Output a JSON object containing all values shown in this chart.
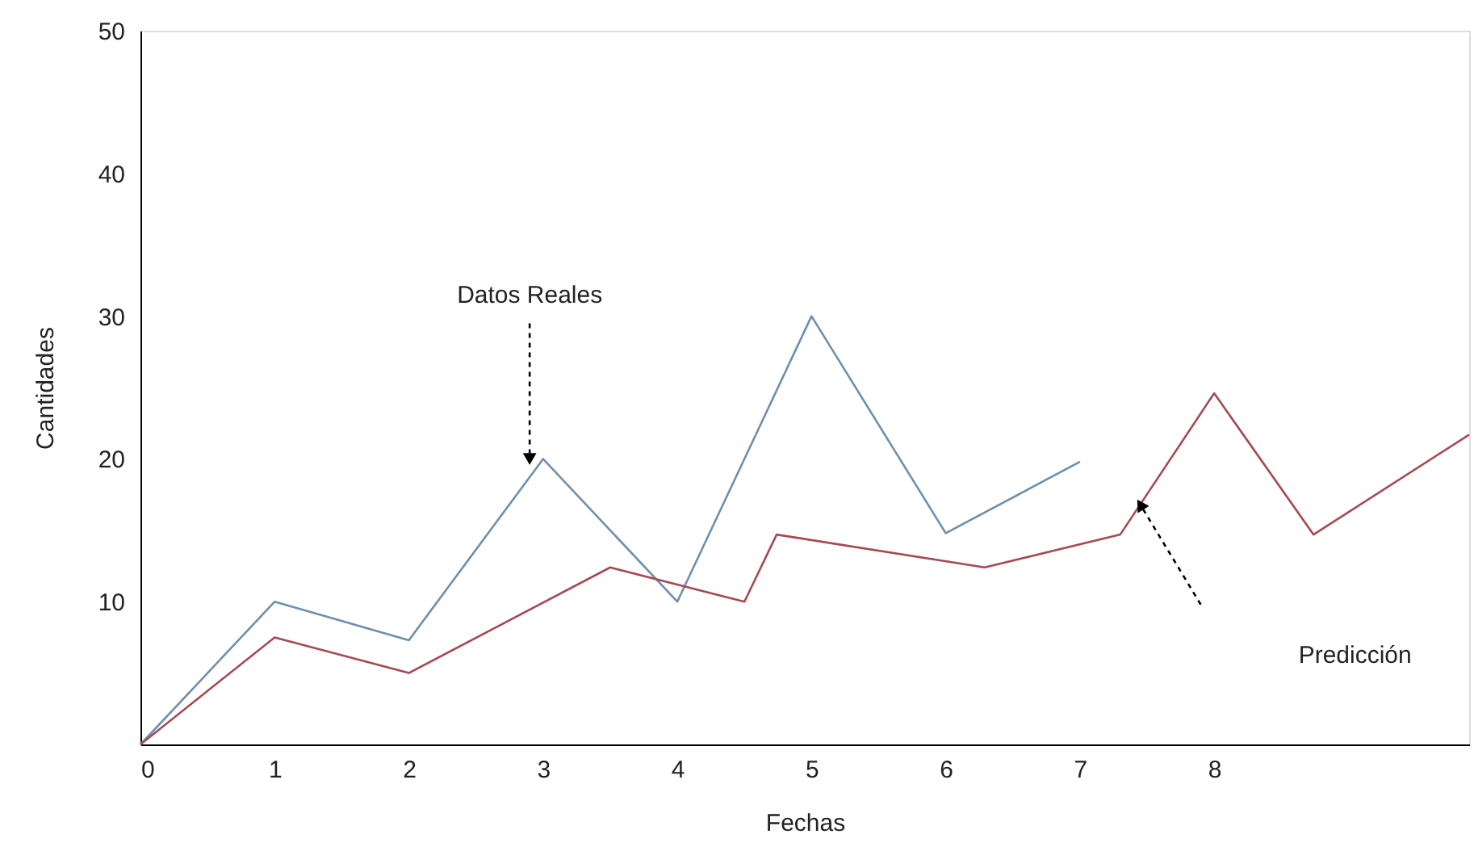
{
  "chart_data": {
    "type": "line",
    "xlabel": "Fechas",
    "ylabel": "Cantidades",
    "xlim": [
      0,
      9.9
    ],
    "xticks": [
      0,
      1,
      2,
      3,
      4,
      5,
      6,
      7,
      8
    ],
    "ylim": [
      0,
      50
    ],
    "yticks": [
      10,
      20,
      30,
      40,
      50
    ],
    "grid": false,
    "marker": "none",
    "line_style": "solid",
    "series": [
      {
        "color": "#6f8fae",
        "x": [
          0,
          1,
          2,
          3,
          4,
          5,
          6,
          7
        ],
        "values": [
          0,
          10,
          7.3,
          20,
          10,
          30,
          14.8,
          19.8
        ]
      },
      {
        "color": "#a54a52",
        "x": [
          0,
          1,
          2,
          3.5,
          4.5,
          4.74,
          6.29,
          7.3,
          8,
          8.74,
          9.9
        ],
        "values": [
          0,
          7.5,
          5,
          12.4,
          10,
          14.7,
          12.4,
          14.7,
          24.6,
          14.7,
          21.7
        ]
      }
    ],
    "annotations": [
      {
        "text": "Datos Reales",
        "x": 2.9,
        "y": 20
      },
      "Predicción"
    ]
  }
}
